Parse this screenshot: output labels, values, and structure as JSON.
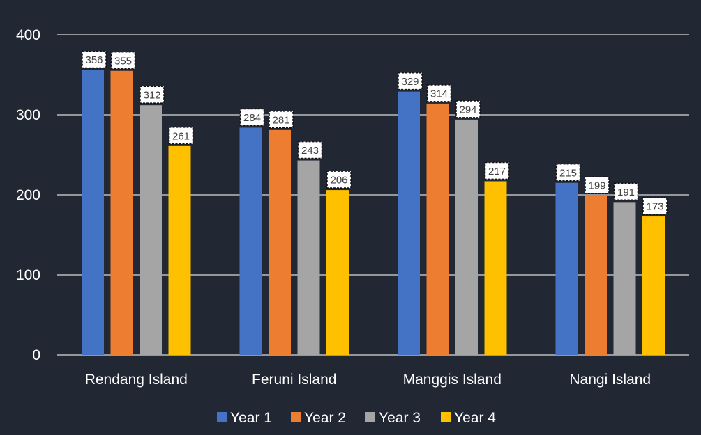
{
  "chart_data": {
    "type": "bar",
    "title": "",
    "xlabel": "",
    "ylabel": "",
    "categories": [
      "Rendang Island",
      "Feruni Island",
      "Manggis Island",
      "Nangi Island"
    ],
    "series": [
      {
        "name": "Year 1",
        "color": "#4472c4",
        "values": [
          356,
          284,
          329,
          215
        ]
      },
      {
        "name": "Year 2",
        "color": "#ed7d31",
        "values": [
          355,
          281,
          314,
          199
        ]
      },
      {
        "name": "Year 3",
        "color": "#a5a5a5",
        "values": [
          312,
          243,
          294,
          191
        ]
      },
      {
        "name": "Year 4",
        "color": "#ffc000",
        "values": [
          261,
          206,
          217,
          173
        ]
      }
    ],
    "ylim": [
      0,
      400
    ],
    "yticks": [
      "0",
      "100",
      "200",
      "300",
      "400"
    ],
    "grid": true,
    "legend_position": "bottom",
    "data_labels": true,
    "background": "#222833",
    "gridline_color": "#d9d9d9"
  }
}
